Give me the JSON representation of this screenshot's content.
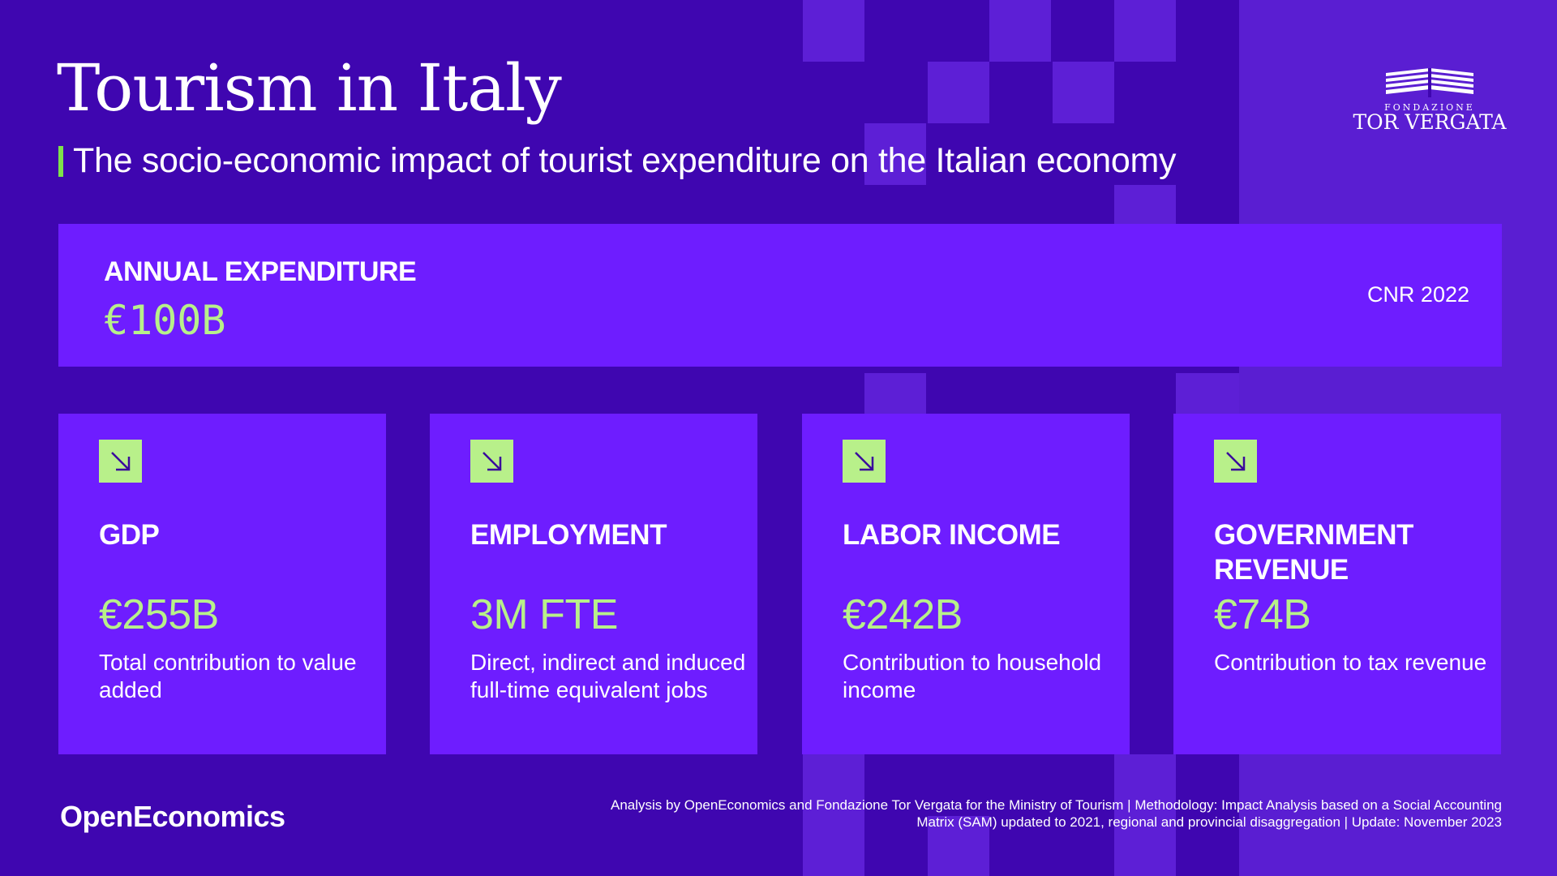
{
  "header": {
    "title": "Tourism in Italy",
    "subtitle": "The socio-economic impact of tourist expenditure on the Italian economy"
  },
  "logo": {
    "small_text": "FONDAZIONE",
    "big_text": "TOR VERGATA"
  },
  "expenditure": {
    "label": "ANNUAL EXPENDITURE",
    "value": "€100B",
    "source": "CNR 2022"
  },
  "cards": [
    {
      "icon": "arrow-down-right-icon",
      "title": "GDP",
      "value": "€255B",
      "description": "Total contribution to value added"
    },
    {
      "icon": "arrow-down-right-icon",
      "title": "EMPLOYMENT",
      "value": "3M FTE",
      "description": "Direct, indirect and induced full-time equivalent jobs"
    },
    {
      "icon": "arrow-down-right-icon",
      "title": "LABOR INCOME",
      "value": "€242B",
      "description": "Contribution to household income"
    },
    {
      "icon": "arrow-down-right-icon",
      "title": "GOVERNMENT REVENUE",
      "value": "€74B",
      "description": "Contribution to tax revenue"
    }
  ],
  "footer": {
    "brand": "OpenEconomics",
    "note": "Analysis by OpenEconomics and Fondazione Tor Vergata for the Ministry of Tourism | Methodology: Impact Analysis based on a Social Accounting Matrix (SAM) updated to 2021, regional and provincial disaggregation | Update: November 2023"
  },
  "colors": {
    "background": "#3f06b0",
    "panel": "#6e1dff",
    "accent": "#b8f08a",
    "subtitle_bar": "#7ee24a"
  }
}
